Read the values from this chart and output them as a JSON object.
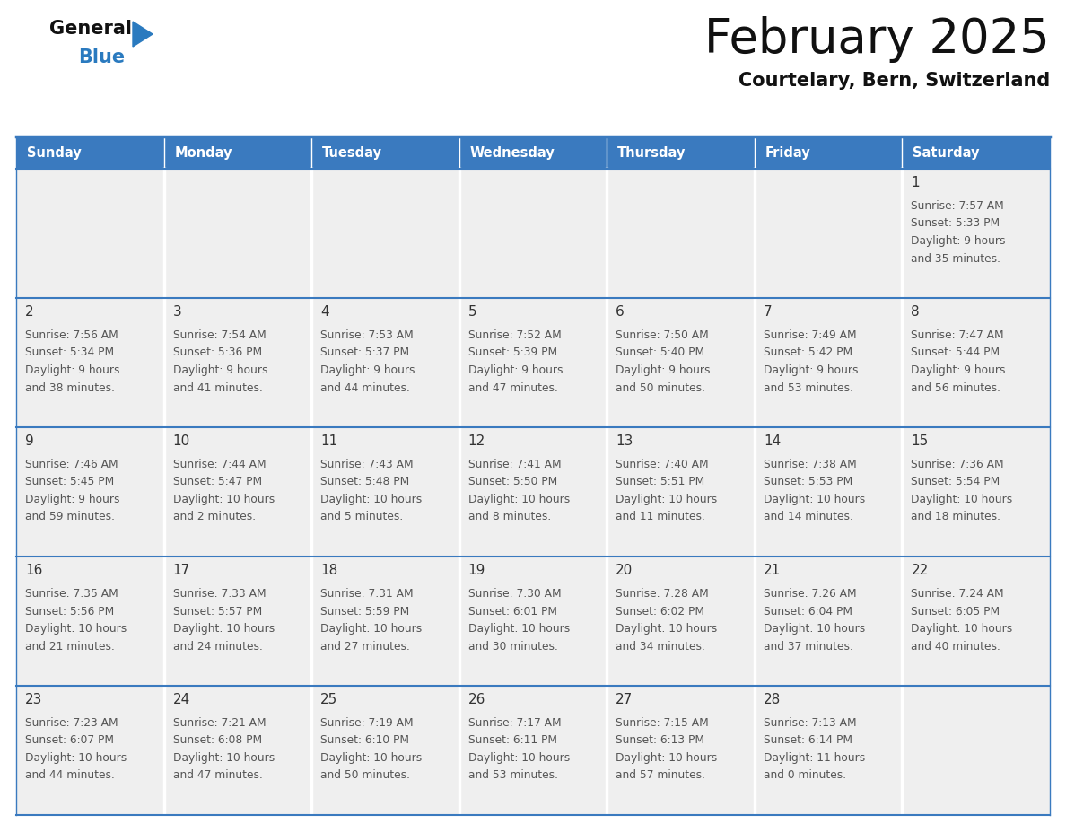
{
  "title": "February 2025",
  "subtitle": "Courtelary, Bern, Switzerland",
  "days_of_week": [
    "Sunday",
    "Monday",
    "Tuesday",
    "Wednesday",
    "Thursday",
    "Friday",
    "Saturday"
  ],
  "header_bg": "#3a7abf",
  "header_text": "#ffffff",
  "cell_bg": "#efefef",
  "empty_cell_bg": "#efefef",
  "border_color": "#3a7abf",
  "separator_color": "#ffffff",
  "day_number_color": "#333333",
  "info_color": "#555555",
  "title_color": "#111111",
  "subtitle_color": "#111111",
  "logo_general_color": "#111111",
  "logo_blue_color": "#2a7abf",
  "logo_triangle_color": "#2a7abf",
  "calendar_data": [
    [
      null,
      null,
      null,
      null,
      null,
      null,
      {
        "day": "1",
        "sunrise": "7:57 AM",
        "sunset": "5:33 PM",
        "daylight_line1": "Daylight: 9 hours",
        "daylight_line2": "and 35 minutes."
      }
    ],
    [
      {
        "day": "2",
        "sunrise": "7:56 AM",
        "sunset": "5:34 PM",
        "daylight_line1": "Daylight: 9 hours",
        "daylight_line2": "and 38 minutes."
      },
      {
        "day": "3",
        "sunrise": "7:54 AM",
        "sunset": "5:36 PM",
        "daylight_line1": "Daylight: 9 hours",
        "daylight_line2": "and 41 minutes."
      },
      {
        "day": "4",
        "sunrise": "7:53 AM",
        "sunset": "5:37 PM",
        "daylight_line1": "Daylight: 9 hours",
        "daylight_line2": "and 44 minutes."
      },
      {
        "day": "5",
        "sunrise": "7:52 AM",
        "sunset": "5:39 PM",
        "daylight_line1": "Daylight: 9 hours",
        "daylight_line2": "and 47 minutes."
      },
      {
        "day": "6",
        "sunrise": "7:50 AM",
        "sunset": "5:40 PM",
        "daylight_line1": "Daylight: 9 hours",
        "daylight_line2": "and 50 minutes."
      },
      {
        "day": "7",
        "sunrise": "7:49 AM",
        "sunset": "5:42 PM",
        "daylight_line1": "Daylight: 9 hours",
        "daylight_line2": "and 53 minutes."
      },
      {
        "day": "8",
        "sunrise": "7:47 AM",
        "sunset": "5:44 PM",
        "daylight_line1": "Daylight: 9 hours",
        "daylight_line2": "and 56 minutes."
      }
    ],
    [
      {
        "day": "9",
        "sunrise": "7:46 AM",
        "sunset": "5:45 PM",
        "daylight_line1": "Daylight: 9 hours",
        "daylight_line2": "and 59 minutes."
      },
      {
        "day": "10",
        "sunrise": "7:44 AM",
        "sunset": "5:47 PM",
        "daylight_line1": "Daylight: 10 hours",
        "daylight_line2": "and 2 minutes."
      },
      {
        "day": "11",
        "sunrise": "7:43 AM",
        "sunset": "5:48 PM",
        "daylight_line1": "Daylight: 10 hours",
        "daylight_line2": "and 5 minutes."
      },
      {
        "day": "12",
        "sunrise": "7:41 AM",
        "sunset": "5:50 PM",
        "daylight_line1": "Daylight: 10 hours",
        "daylight_line2": "and 8 minutes."
      },
      {
        "day": "13",
        "sunrise": "7:40 AM",
        "sunset": "5:51 PM",
        "daylight_line1": "Daylight: 10 hours",
        "daylight_line2": "and 11 minutes."
      },
      {
        "day": "14",
        "sunrise": "7:38 AM",
        "sunset": "5:53 PM",
        "daylight_line1": "Daylight: 10 hours",
        "daylight_line2": "and 14 minutes."
      },
      {
        "day": "15",
        "sunrise": "7:36 AM",
        "sunset": "5:54 PM",
        "daylight_line1": "Daylight: 10 hours",
        "daylight_line2": "and 18 minutes."
      }
    ],
    [
      {
        "day": "16",
        "sunrise": "7:35 AM",
        "sunset": "5:56 PM",
        "daylight_line1": "Daylight: 10 hours",
        "daylight_line2": "and 21 minutes."
      },
      {
        "day": "17",
        "sunrise": "7:33 AM",
        "sunset": "5:57 PM",
        "daylight_line1": "Daylight: 10 hours",
        "daylight_line2": "and 24 minutes."
      },
      {
        "day": "18",
        "sunrise": "7:31 AM",
        "sunset": "5:59 PM",
        "daylight_line1": "Daylight: 10 hours",
        "daylight_line2": "and 27 minutes."
      },
      {
        "day": "19",
        "sunrise": "7:30 AM",
        "sunset": "6:01 PM",
        "daylight_line1": "Daylight: 10 hours",
        "daylight_line2": "and 30 minutes."
      },
      {
        "day": "20",
        "sunrise": "7:28 AM",
        "sunset": "6:02 PM",
        "daylight_line1": "Daylight: 10 hours",
        "daylight_line2": "and 34 minutes."
      },
      {
        "day": "21",
        "sunrise": "7:26 AM",
        "sunset": "6:04 PM",
        "daylight_line1": "Daylight: 10 hours",
        "daylight_line2": "and 37 minutes."
      },
      {
        "day": "22",
        "sunrise": "7:24 AM",
        "sunset": "6:05 PM",
        "daylight_line1": "Daylight: 10 hours",
        "daylight_line2": "and 40 minutes."
      }
    ],
    [
      {
        "day": "23",
        "sunrise": "7:23 AM",
        "sunset": "6:07 PM",
        "daylight_line1": "Daylight: 10 hours",
        "daylight_line2": "and 44 minutes."
      },
      {
        "day": "24",
        "sunrise": "7:21 AM",
        "sunset": "6:08 PM",
        "daylight_line1": "Daylight: 10 hours",
        "daylight_line2": "and 47 minutes."
      },
      {
        "day": "25",
        "sunrise": "7:19 AM",
        "sunset": "6:10 PM",
        "daylight_line1": "Daylight: 10 hours",
        "daylight_line2": "and 50 minutes."
      },
      {
        "day": "26",
        "sunrise": "7:17 AM",
        "sunset": "6:11 PM",
        "daylight_line1": "Daylight: 10 hours",
        "daylight_line2": "and 53 minutes."
      },
      {
        "day": "27",
        "sunrise": "7:15 AM",
        "sunset": "6:13 PM",
        "daylight_line1": "Daylight: 10 hours",
        "daylight_line2": "and 57 minutes."
      },
      {
        "day": "28",
        "sunrise": "7:13 AM",
        "sunset": "6:14 PM",
        "daylight_line1": "Daylight: 11 hours",
        "daylight_line2": "and 0 minutes."
      },
      null
    ]
  ],
  "figsize": [
    11.88,
    9.18
  ],
  "dpi": 100
}
